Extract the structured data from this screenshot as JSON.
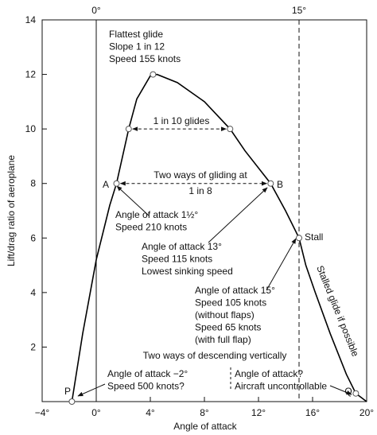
{
  "chart_data": {
    "type": "line",
    "x_label": "Angle of attack",
    "y_label": "Lift/drag ratio of aeroplane",
    "x": [
      -1.8,
      -1,
      0,
      1,
      1.5,
      2.4,
      3,
      4,
      4.5,
      6,
      8,
      9.9,
      11,
      12.9,
      14,
      15,
      15.5,
      16.2,
      17.3,
      18.5,
      19.2,
      20
    ],
    "series": [
      {
        "color": "#000000",
        "values": [
          0,
          2.5,
          5.2,
          7.2,
          8,
          10,
          11.1,
          11.95,
          12,
          11.7,
          11,
          10,
          9.2,
          8,
          7,
          6,
          5,
          4,
          2.5,
          1,
          0.3,
          0
        ]
      }
    ],
    "markers": {
      "x": [
        -1.8,
        4.2,
        2.4,
        9.9,
        1.5,
        12.9,
        15,
        19.2
      ],
      "y": [
        0,
        12,
        10,
        10,
        8,
        8,
        6,
        0.3
      ]
    },
    "xlim": [
      -4,
      20
    ],
    "ylim": [
      0,
      14
    ],
    "xticks": [
      {
        "value": -4,
        "label": "−4°"
      },
      {
        "value": 0,
        "label": "0°"
      },
      {
        "value": 4,
        "label": "4°"
      },
      {
        "value": 8,
        "label": "8°"
      },
      {
        "value": 12,
        "label": "12°"
      },
      {
        "value": 16,
        "label": "16°"
      },
      {
        "value": 20,
        "label": "20°"
      }
    ],
    "x2ticks": [
      {
        "value": 0,
        "label": "0°"
      },
      {
        "value": 15,
        "label": "15°"
      }
    ],
    "yticks": [
      2,
      4,
      6,
      8,
      10,
      12,
      14
    ],
    "annotations": [
      [
        "Flattest glide",
        "Slope 1 in 12",
        "Speed 155 knots"
      ],
      [
        "1 in 10 glides"
      ],
      [
        "Two ways of gliding at",
        "1 in 8"
      ],
      [
        "A"
      ],
      [
        "B"
      ],
      [
        "Angle of attack 1½°",
        "Speed 210 knots"
      ],
      [
        "Angle of attack 13°",
        "Speed 115 knots",
        "Lowest sinking speed"
      ],
      [
        "Stall"
      ],
      [
        "Angle of attack 15°",
        "Speed 105 knots",
        "(without flaps)",
        "Speed 65 knots",
        "(with full flap)"
      ],
      [
        "Stalled glide if possible"
      ],
      [
        "Two ways of descending vertically"
      ],
      [
        "Angle of attack −2°",
        "Speed 500 knots?"
      ],
      [
        "Angle of attack?",
        "Aircraft uncontrollable"
      ],
      [
        "P"
      ],
      [
        "Q"
      ]
    ]
  }
}
